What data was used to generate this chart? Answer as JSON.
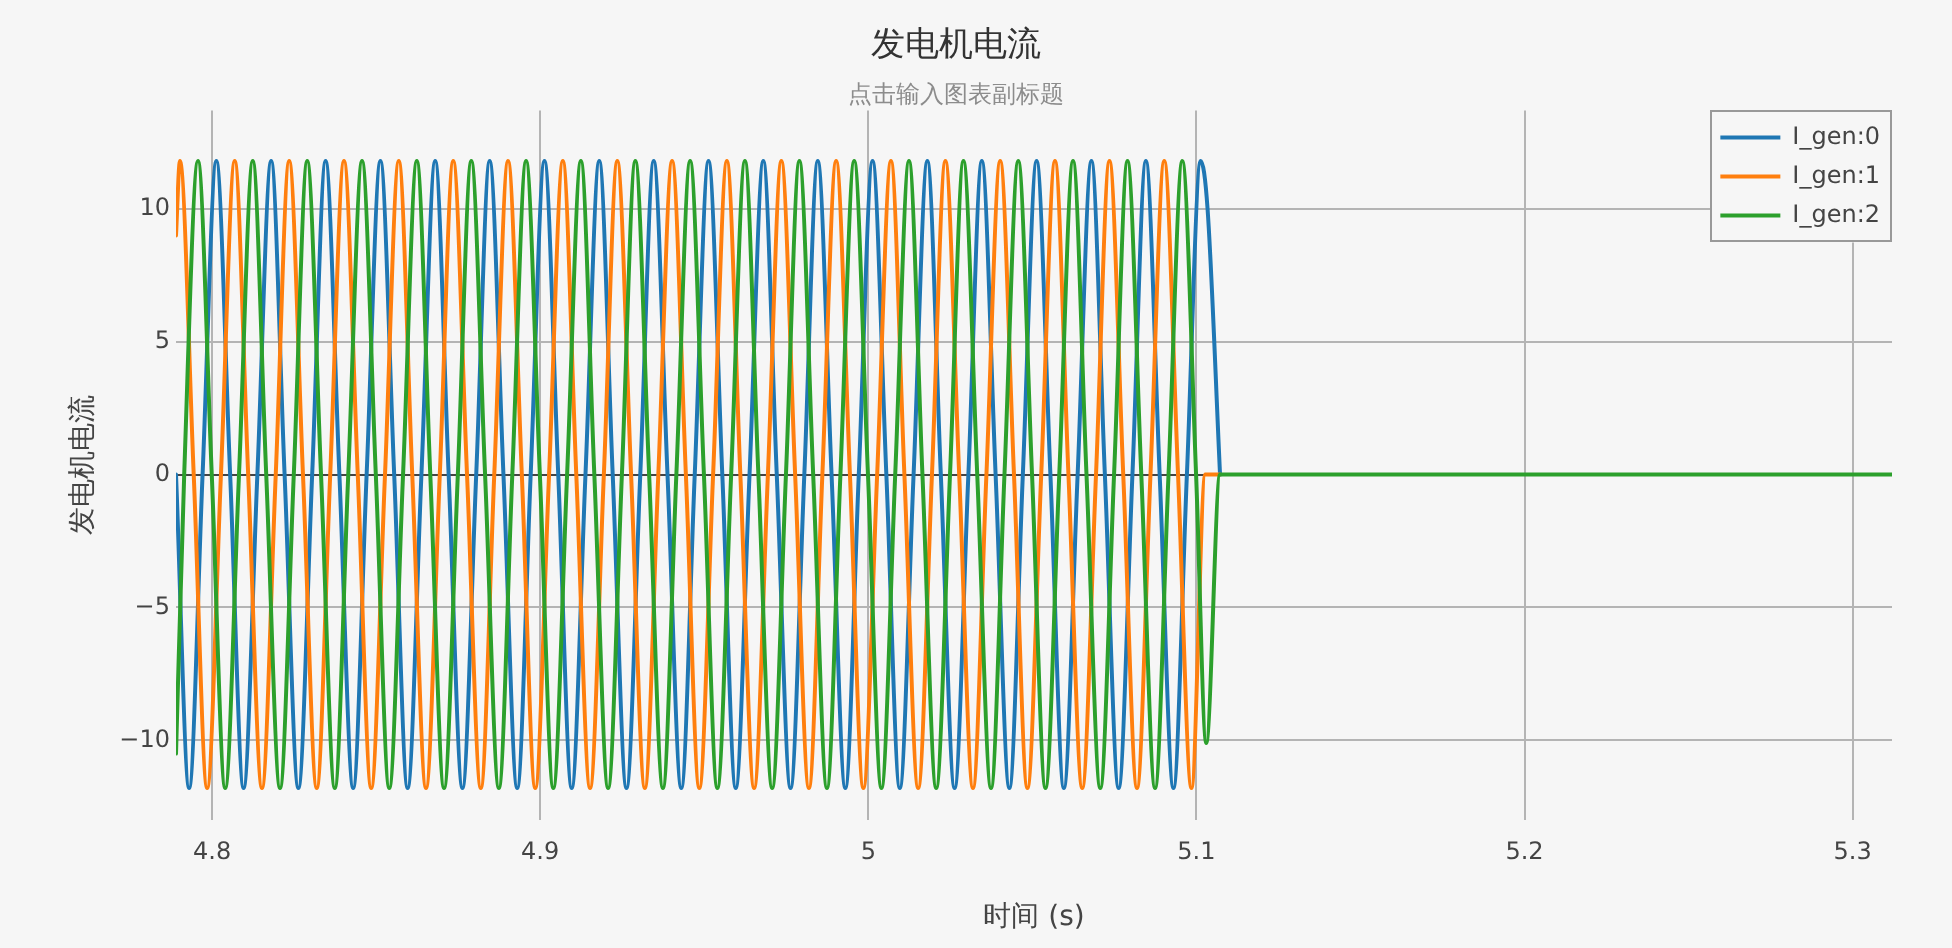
{
  "chart_data": {
    "type": "line",
    "title": "发电机电流",
    "subtitle": "点击输入图表副标题",
    "xlabel": "时间 (s)",
    "ylabel": "发电机电流",
    "xlim": [
      4.789,
      5.312
    ],
    "xticks": [
      4.8,
      4.9,
      5,
      5.1,
      5.2,
      5.3
    ],
    "ylim": [
      -13,
      13.7
    ],
    "yticks": [
      {
        "value": -10,
        "label": "−10"
      },
      {
        "value": -5,
        "label": "−5"
      },
      0,
      5,
      10
    ],
    "grid": true,
    "legend": "top right",
    "marker": "none",
    "line_style": "solid",
    "series": [
      {
        "name": "I_gen:0",
        "color": "#1f77b4",
        "x": [
          4.789,
          4.793,
          4.7971,
          4.8013,
          4.8055,
          4.8096,
          4.8138,
          4.818,
          4.8221,
          4.8263,
          4.8305,
          4.8346,
          4.8388,
          4.843,
          4.8471,
          4.8513,
          4.8555,
          4.8596,
          4.8638,
          4.868,
          4.8721,
          4.8763,
          4.8805,
          4.8846,
          4.8888,
          4.893,
          4.8971,
          4.9013,
          4.9055,
          4.9096,
          4.9138,
          4.918,
          4.9221,
          4.9263,
          4.9305,
          4.9346,
          4.9388,
          4.943,
          4.9471,
          4.9513,
          4.9555,
          4.9596,
          4.9638,
          4.968,
          4.9721,
          4.9763,
          4.9805,
          4.9846,
          4.9888,
          4.993,
          4.9971,
          5.0013,
          5.0055,
          5.0096,
          5.0138,
          5.018,
          5.0221,
          5.0263,
          5.0305,
          5.0346,
          5.0388,
          5.043,
          5.0471,
          5.0513,
          5.0555,
          5.0596,
          5.0638,
          5.068,
          5.0721,
          5.0763,
          5.0805,
          5.0846,
          5.0888,
          5.093,
          5.0971,
          5.1013,
          5.1034,
          5.1072
        ],
        "values": [
          0,
          -11.8,
          0,
          11.8,
          0,
          -11.8,
          0,
          11.8,
          0,
          -11.8,
          0,
          11.8,
          0,
          -11.8,
          0,
          11.8,
          0,
          -11.8,
          0,
          11.8,
          0,
          -11.8,
          0,
          11.8,
          0,
          -11.8,
          0,
          11.8,
          0,
          -11.8,
          0,
          11.8,
          0,
          -11.8,
          0,
          11.8,
          0,
          -11.8,
          0,
          11.8,
          0,
          -11.8,
          0,
          11.8,
          0,
          -11.8,
          0,
          11.8,
          0,
          -11.8,
          0,
          11.8,
          0,
          -11.8,
          0,
          11.8,
          0,
          -11.8,
          0,
          11.8,
          0,
          -11.8,
          0,
          11.8,
          0,
          -11.8,
          0,
          11.8,
          0,
          -11.8,
          0,
          11.8,
          0,
          -11.8,
          0,
          11.8,
          10,
          0
        ]
      },
      {
        "name": "I_gen:1",
        "color": "#ff7f0e",
        "x": [
          4.789,
          4.7902,
          4.7944,
          4.7985,
          4.8027,
          4.8069,
          4.811,
          4.8152,
          4.8194,
          4.8235,
          4.8277,
          4.8319,
          4.836,
          4.8402,
          4.8444,
          4.8485,
          4.8527,
          4.8569,
          4.861,
          4.8652,
          4.8694,
          4.8735,
          4.8777,
          4.8819,
          4.886,
          4.8902,
          4.8944,
          4.8985,
          4.9027,
          4.9069,
          4.911,
          4.9152,
          4.9194,
          4.9235,
          4.9277,
          4.9319,
          4.936,
          4.9402,
          4.9444,
          4.9485,
          4.9527,
          4.9569,
          4.961,
          4.9652,
          4.9694,
          4.9735,
          4.9777,
          4.9819,
          4.986,
          4.9902,
          4.9944,
          4.9985,
          5.0027,
          5.0069,
          5.011,
          5.0152,
          5.0194,
          5.0235,
          5.0277,
          5.0319,
          5.036,
          5.0402,
          5.0444,
          5.0485,
          5.0527,
          5.0569,
          5.061,
          5.0652,
          5.0694,
          5.0735,
          5.0777,
          5.0819,
          5.086,
          5.0902,
          5.0944,
          5.0985,
          5.1027,
          5.1072
        ],
        "values": [
          9,
          11.8,
          0,
          -11.8,
          0,
          11.8,
          0,
          -11.8,
          0,
          11.8,
          0,
          -11.8,
          0,
          11.8,
          0,
          -11.8,
          0,
          11.8,
          0,
          -11.8,
          0,
          11.8,
          0,
          -11.8,
          0,
          11.8,
          0,
          -11.8,
          0,
          11.8,
          0,
          -11.8,
          0,
          11.8,
          0,
          -11.8,
          0,
          11.8,
          0,
          -11.8,
          0,
          11.8,
          0,
          -11.8,
          0,
          11.8,
          0,
          -11.8,
          0,
          11.8,
          0,
          -11.8,
          0,
          11.8,
          0,
          -11.8,
          0,
          11.8,
          0,
          -11.8,
          0,
          11.8,
          0,
          -11.8,
          0,
          11.8,
          0,
          -11.8,
          0,
          11.8,
          0,
          -11.8,
          0,
          11.8,
          0,
          -11.8,
          0,
          0
        ]
      },
      {
        "name": "I_gen:2",
        "color": "#2ca02c",
        "x": [
          4.789,
          4.7915,
          4.7957,
          4.7999,
          4.804,
          4.8082,
          4.8124,
          4.8165,
          4.8207,
          4.8249,
          4.829,
          4.8332,
          4.8374,
          4.8415,
          4.8457,
          4.8499,
          4.854,
          4.8582,
          4.8624,
          4.8665,
          4.8707,
          4.8749,
          4.879,
          4.8832,
          4.8874,
          4.8915,
          4.8957,
          4.8999,
          4.904,
          4.9082,
          4.9124,
          4.9165,
          4.9207,
          4.9249,
          4.929,
          4.9332,
          4.9374,
          4.9415,
          4.9457,
          4.9499,
          4.954,
          4.9582,
          4.9624,
          4.9665,
          4.9707,
          4.9749,
          4.979,
          4.9832,
          4.9874,
          4.9915,
          4.9957,
          4.9999,
          5.004,
          5.0082,
          5.0124,
          5.0165,
          5.0207,
          5.0249,
          5.029,
          5.0332,
          5.0374,
          5.0415,
          5.0457,
          5.0499,
          5.054,
          5.0582,
          5.0624,
          5.0665,
          5.0707,
          5.0749,
          5.079,
          5.0832,
          5.0874,
          5.0915,
          5.0957,
          5.0999,
          5.103,
          5.1072,
          5.312
        ],
        "values": [
          -10.5,
          0,
          11.8,
          0,
          -11.8,
          0,
          11.8,
          0,
          -11.8,
          0,
          11.8,
          0,
          -11.8,
          0,
          11.8,
          0,
          -11.8,
          0,
          11.8,
          0,
          -11.8,
          0,
          11.8,
          0,
          -11.8,
          0,
          11.8,
          0,
          -11.8,
          0,
          11.8,
          0,
          -11.8,
          0,
          11.8,
          0,
          -11.8,
          0,
          11.8,
          0,
          -11.8,
          0,
          11.8,
          0,
          -11.8,
          0,
          11.8,
          0,
          -11.8,
          0,
          11.8,
          0,
          -11.8,
          0,
          11.8,
          0,
          -11.8,
          0,
          11.8,
          0,
          -11.8,
          0,
          11.8,
          0,
          -11.8,
          0,
          11.8,
          0,
          -11.8,
          0,
          11.8,
          0,
          -11.8,
          0,
          11.8,
          0,
          -10.1,
          0,
          0
        ]
      }
    ]
  }
}
